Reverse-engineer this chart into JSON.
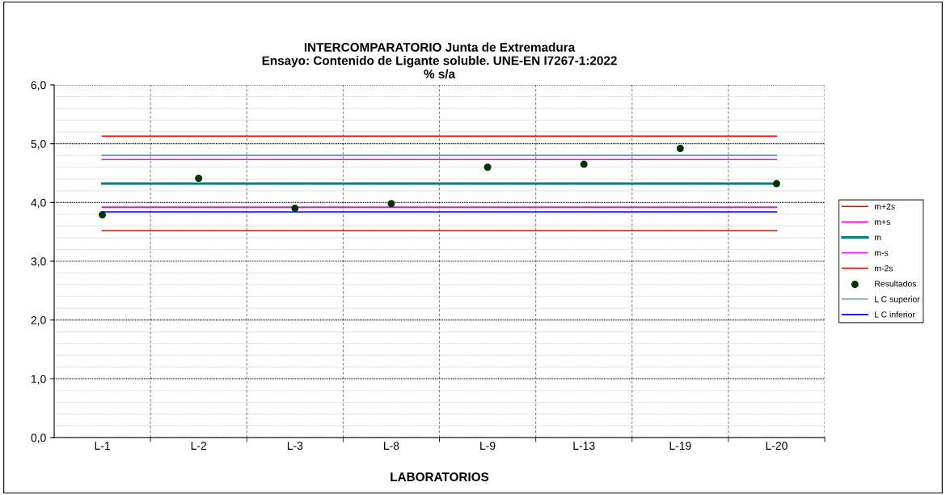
{
  "chart_data": {
    "type": "line",
    "title": "INTERCOMPARATORIO Junta de Extremadura\nEnsayo: Contenido de Ligante soluble. UNE-EN I7267-1:2022\n% s/a",
    "xlabel": "LABORATORIOS",
    "categories": [
      "L-1",
      "L-2",
      "L-3",
      "L-8",
      "L-9",
      "L-13",
      "L-19",
      "L-20"
    ],
    "series": [
      {
        "name": "m+2s",
        "color": "#ff0000",
        "values": [
          5.13,
          5.13,
          5.13,
          5.13,
          5.13,
          5.13,
          5.13,
          5.13
        ]
      },
      {
        "name": "m+s",
        "color": "#ff00ff",
        "values": [
          4.73,
          4.73,
          4.73,
          4.73,
          4.73,
          4.73,
          4.73,
          4.73
        ]
      },
      {
        "name": "m",
        "color": "#008080",
        "values": [
          4.32,
          4.32,
          4.32,
          4.32,
          4.32,
          4.32,
          4.32,
          4.32
        ]
      },
      {
        "name": "m-s",
        "color": "#ff00ff",
        "values": [
          3.92,
          3.92,
          3.92,
          3.92,
          3.92,
          3.92,
          3.92,
          3.92
        ]
      },
      {
        "name": "m-2s",
        "color": "#ff0000",
        "values": [
          3.52,
          3.52,
          3.52,
          3.52,
          3.52,
          3.52,
          3.52,
          3.52
        ]
      },
      {
        "name": "Resultados",
        "type": "scatter",
        "color": "#003300",
        "marker": "circle",
        "values": [
          3.79,
          4.41,
          3.9,
          3.98,
          4.6,
          4.65,
          4.92,
          4.32
        ]
      },
      {
        "name": "L C superior",
        "color": "#6688ff",
        "values": [
          4.8,
          4.8,
          4.8,
          4.8,
          4.8,
          4.8,
          4.8,
          4.8
        ]
      },
      {
        "name": "L C inferior",
        "color": "#0000ff",
        "values": [
          3.84,
          3.84,
          3.84,
          3.84,
          3.84,
          3.84,
          3.84,
          3.84
        ]
      }
    ],
    "ylim": [
      0,
      6
    ],
    "yticks": [
      {
        "value": 0,
        "label": "0,0"
      },
      {
        "value": 1,
        "label": "1,0"
      },
      {
        "value": 2,
        "label": "2,0"
      },
      {
        "value": 3,
        "label": "3,0"
      },
      {
        "value": 4,
        "label": "4,0"
      },
      {
        "value": 5,
        "label": "5,0"
      },
      {
        "value": 6,
        "label": "6,0"
      }
    ],
    "grid": true,
    "legend": "right"
  }
}
